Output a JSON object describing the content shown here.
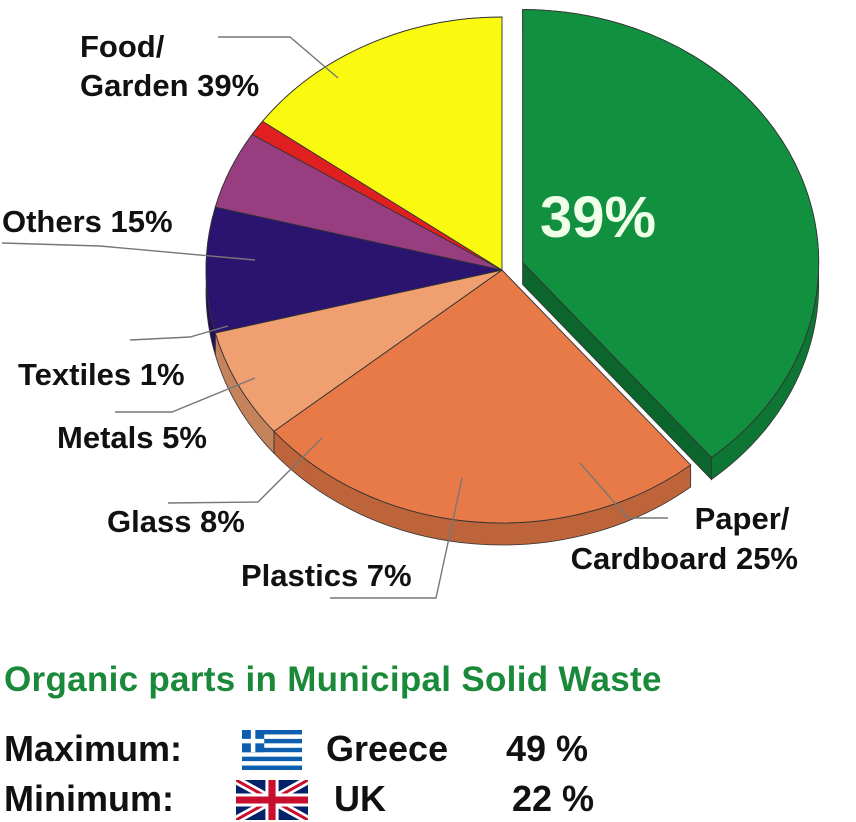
{
  "chart_data": {
    "type": "pie",
    "slices": [
      {
        "label": "Food/ Garden 39%",
        "label_lines": [
          "Food/",
          "Garden 39%"
        ],
        "value": 39,
        "color": "#119040",
        "exploded": true
      },
      {
        "label": "Paper/ Cardboard 25%",
        "label_lines": [
          "Paper/",
          "Cardboard 25%"
        ],
        "value": 25,
        "color": "#e87a48"
      },
      {
        "label": "Plastics 7%",
        "label_lines": [
          "Plastics 7%"
        ],
        "value": 7,
        "color": "#f0a070"
      },
      {
        "label": "Glass 8%",
        "label_lines": [
          "Glass 8%"
        ],
        "value": 8,
        "color": "#2a1470"
      },
      {
        "label": "Metals 5%",
        "label_lines": [
          "Metals 5%"
        ],
        "value": 5,
        "color": "#983e80"
      },
      {
        "label": "Textiles 1%",
        "label_lines": [
          "Textiles 1%"
        ],
        "value": 1,
        "color": "#e02020"
      },
      {
        "label": "Others 15%",
        "label_lines": [
          "Others 15%"
        ],
        "value": 15,
        "color": "#fafa10"
      }
    ],
    "highlight_label": "39%"
  },
  "caption": {
    "title": "Organic parts in Municipal Solid Waste",
    "rows": [
      {
        "label": "Maximum:",
        "flag_icon": "greece-flag-icon",
        "country": "Greece",
        "value": "49 %"
      },
      {
        "label": "Minimum:",
        "flag_icon": "uk-flag-icon",
        "country": "UK",
        "value": "22 %"
      }
    ]
  }
}
